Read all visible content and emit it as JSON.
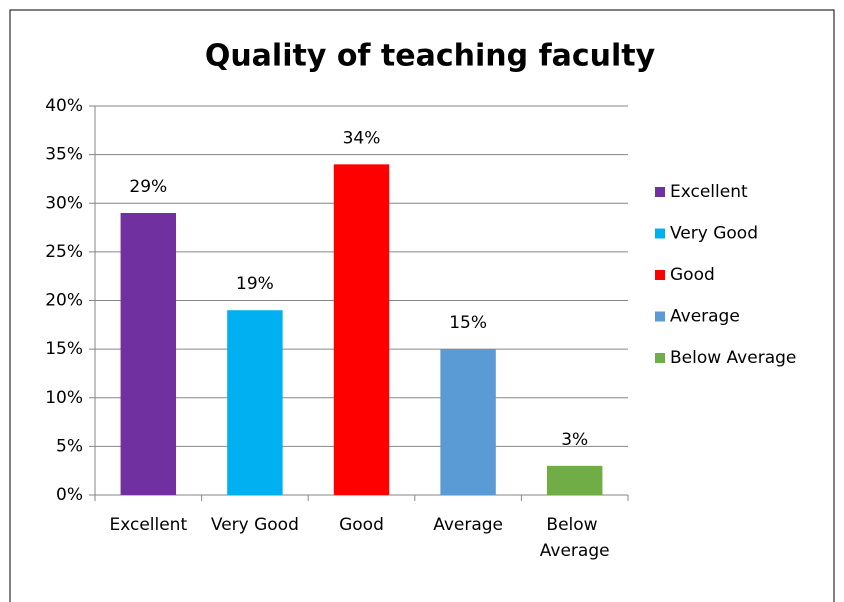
{
  "chart_data": {
    "type": "bar",
    "title": "Quality of teaching faculty",
    "categories": [
      "Excellent",
      "Very Good",
      "Good",
      "Average",
      "Below Average"
    ],
    "values": [
      29,
      19,
      34,
      15,
      3
    ],
    "value_labels": [
      "29%",
      "19%",
      "34%",
      "15%",
      "3%"
    ],
    "colors": [
      "#7030a0",
      "#00b0f0",
      "#ff0000",
      "#5b9bd5",
      "#70ad47"
    ],
    "ylim": [
      0,
      40
    ],
    "yticks": [
      {
        "value": 0,
        "label": "0%"
      },
      {
        "value": 5,
        "label": "5%"
      },
      {
        "value": 10,
        "label": "10%"
      },
      {
        "value": 15,
        "label": "15%"
      },
      {
        "value": 20,
        "label": "20%"
      },
      {
        "value": 25,
        "label": "25%"
      },
      {
        "value": 30,
        "label": "30%"
      },
      {
        "value": 35,
        "label": "35%"
      },
      {
        "value": 40,
        "label": "40%"
      }
    ],
    "grid": true,
    "legend": "right"
  }
}
